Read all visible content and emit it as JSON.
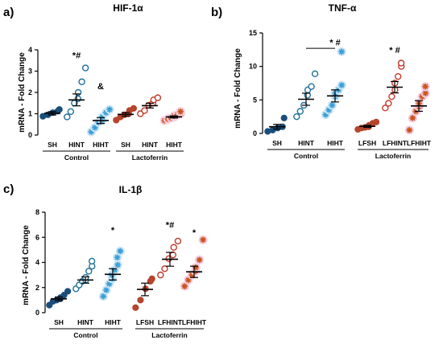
{
  "colors": {
    "control": "#1f6f9a",
    "lactoferrin": "#b3261e",
    "sh_fill": "#1a4e7a",
    "hint_stroke": "#1f6f9a",
    "hiht_star": "#3aa0d8",
    "lfsh_fill": "#b5452c",
    "lfhint_stroke": "#c0392b",
    "lfhiht_star": "#c9561e",
    "ctrl_halo": "#cfe6f5",
    "lf_halo": "#f6cfe2"
  },
  "chart_data": [
    {
      "type": "scatter",
      "panel_label": "a)",
      "title": "HIF-1α",
      "ylabel": "mRNA - Fold Change",
      "ylim": [
        0,
        4
      ],
      "yticks": [
        "0",
        "1",
        "2",
        "3",
        "4"
      ],
      "categories": [
        "SH",
        "HINT",
        "HIHT",
        "SH",
        "HINT",
        "HIHT"
      ],
      "groups": [
        {
          "name": "Control",
          "span": [
            0,
            2
          ]
        },
        {
          "name": "Lactoferrin",
          "span": [
            3,
            5
          ]
        }
      ],
      "series": [
        {
          "points": [
            0.88,
            0.95,
            1.05,
            1.12,
            1.2
          ],
          "mean": 1.02,
          "sem": 0.08
        },
        {
          "points": [
            0.85,
            1.1,
            1.5,
            1.7,
            2.0,
            2.5,
            3.15
          ],
          "mean": 1.65,
          "sem": 0.28
        },
        {
          "points": [
            0.15,
            0.35,
            0.6,
            0.7,
            0.85,
            1.05,
            1.2
          ],
          "mean": 0.68,
          "sem": 0.14
        },
        {
          "points": [
            0.7,
            0.85,
            0.95,
            1.0,
            1.15,
            1.25
          ],
          "mean": 0.97,
          "sem": 0.09
        },
        {
          "points": [
            1.0,
            1.15,
            1.4,
            1.5,
            1.65,
            1.75
          ],
          "mean": 1.38,
          "sem": 0.11
        },
        {
          "points": [
            0.68,
            0.75,
            0.8,
            0.85,
            0.9,
            0.95,
            1.0,
            1.1
          ],
          "mean": 0.85,
          "sem": 0.05
        }
      ],
      "annotations": [
        {
          "category": 1,
          "text": "*#",
          "y": 3.75
        },
        {
          "category": 2,
          "text": "&",
          "y": 2.3
        }
      ]
    },
    {
      "type": "scatter",
      "panel_label": "b)",
      "title": "TNF-α",
      "ylabel": "mRNA - Fold Change",
      "ylim": [
        0,
        15
      ],
      "yticks": [
        "0",
        "5",
        "10",
        "15"
      ],
      "categories": [
        "SH",
        "HINT",
        "HIHT",
        "LFSH",
        "LFHINT",
        "LFHIHT"
      ],
      "groups": [
        {
          "name": "Control",
          "span": [
            0,
            2
          ]
        },
        {
          "name": "Lactoferrin",
          "span": [
            3,
            5
          ]
        }
      ],
      "series": [
        {
          "points": [
            0.3,
            0.5,
            0.8,
            1.0,
            2.3
          ],
          "mean": 1.0,
          "sem": 0.35
        },
        {
          "points": [
            2.5,
            3.3,
            4.2,
            5.7,
            6.5,
            7.0,
            8.9
          ],
          "mean": 5.1,
          "sem": 0.9
        },
        {
          "points": [
            2.8,
            3.5,
            4.2,
            5.5,
            6.0,
            6.5,
            7.2,
            12.2
          ],
          "mean": 5.6,
          "sem": 0.9
        },
        {
          "points": [
            0.6,
            0.8,
            0.9,
            1.0,
            1.2,
            1.5,
            1.7
          ],
          "mean": 1.05,
          "sem": 0.15
        },
        {
          "points": [
            3.8,
            4.5,
            5.5,
            6.5,
            7.5,
            8.5,
            10.0,
            10.5
          ],
          "mean": 6.9,
          "sem": 0.85
        },
        {
          "points": [
            0.5,
            2.3,
            3.3,
            4.0,
            4.5,
            5.5,
            6.0,
            7.0
          ],
          "mean": 4.1,
          "sem": 0.8
        }
      ],
      "annotations": [
        {
          "category": 2,
          "text": "* #",
          "y": 13.6
        },
        {
          "category": 4,
          "text": "* #",
          "y": 12.5
        }
      ],
      "brackets": [
        {
          "from": 1,
          "to": 2,
          "y": 12.7
        }
      ]
    },
    {
      "type": "scatter",
      "panel_label": "c)",
      "title": "IL-1β",
      "ylabel": "mRNA - Fold Change",
      "ylim": [
        0,
        8
      ],
      "yticks": [
        "0",
        "2",
        "4",
        "6",
        "8"
      ],
      "categories": [
        "SH",
        "HINT",
        "HIHT",
        "LFSH",
        "LFHINT",
        "LFHIHT"
      ],
      "groups": [
        {
          "name": "Control",
          "span": [
            0,
            2
          ]
        },
        {
          "name": "Lactoferrin",
          "span": [
            3,
            5
          ]
        }
      ],
      "series": [
        {
          "points": [
            0.6,
            0.9,
            1.0,
            1.1,
            1.2,
            1.4,
            1.7
          ],
          "mean": 1.1,
          "sem": 0.15
        },
        {
          "points": [
            1.9,
            2.2,
            2.5,
            2.6,
            2.8,
            3.3,
            3.7,
            4.1
          ],
          "mean": 2.6,
          "sem": 0.25
        },
        {
          "points": [
            1.3,
            1.8,
            2.3,
            2.7,
            3.0,
            3.4,
            3.8,
            4.4,
            4.9
          ],
          "mean": 3.05,
          "sem": 0.45
        },
        {
          "points": [
            0.4,
            1.0,
            1.9,
            2.5,
            2.7
          ],
          "mean": 1.85,
          "sem": 0.5
        },
        {
          "points": [
            3.0,
            3.5,
            4.3,
            4.6,
            5.2,
            5.7
          ],
          "mean": 4.25,
          "sem": 0.55
        },
        {
          "points": [
            2.1,
            2.6,
            3.0,
            3.3,
            3.6,
            4.2,
            5.8
          ],
          "mean": 3.25,
          "sem": 0.45
        }
      ],
      "annotations": [
        {
          "category": 2,
          "text": "*",
          "y": 6.6
        },
        {
          "category": 4,
          "text": "*#",
          "y": 7.0
        },
        {
          "category": 5,
          "text": "*",
          "y": 6.4
        }
      ]
    }
  ]
}
